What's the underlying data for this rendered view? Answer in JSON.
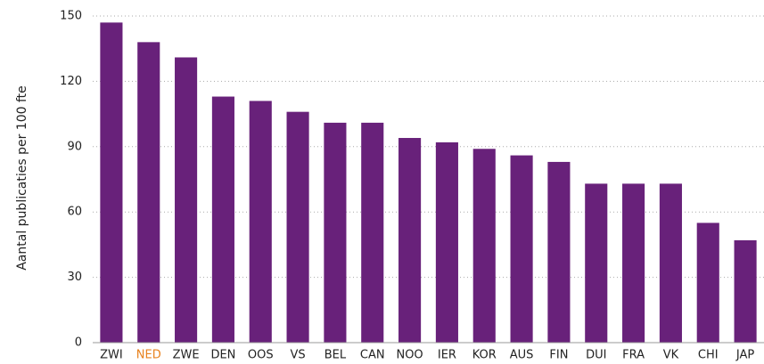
{
  "chart_data": {
    "type": "bar",
    "ylabel": "Aantal publicaties per 100 fte",
    "categories": [
      "ZWI",
      "NED",
      "ZWE",
      "DEN",
      "OOS",
      "VS",
      "BEL",
      "CAN",
      "NOO",
      "IER",
      "KOR",
      "AUS",
      "FIN",
      "DUI",
      "FRA",
      "VK",
      "CHI",
      "JAP"
    ],
    "values": [
      147,
      138,
      131,
      113,
      111,
      106,
      101,
      101,
      94,
      92,
      89,
      86,
      83,
      73,
      73,
      73,
      55,
      47
    ],
    "color": "#68217a",
    "category_label_colors": [
      "#222222",
      "#e8821e",
      "#222222",
      "#222222",
      "#222222",
      "#222222",
      "#222222",
      "#222222",
      "#222222",
      "#222222",
      "#222222",
      "#222222",
      "#222222",
      "#222222",
      "#222222",
      "#222222",
      "#222222",
      "#222222"
    ],
    "ylim": [
      0,
      150
    ],
    "yticks": [
      0,
      30,
      60,
      90,
      120,
      150
    ],
    "grid": true
  }
}
